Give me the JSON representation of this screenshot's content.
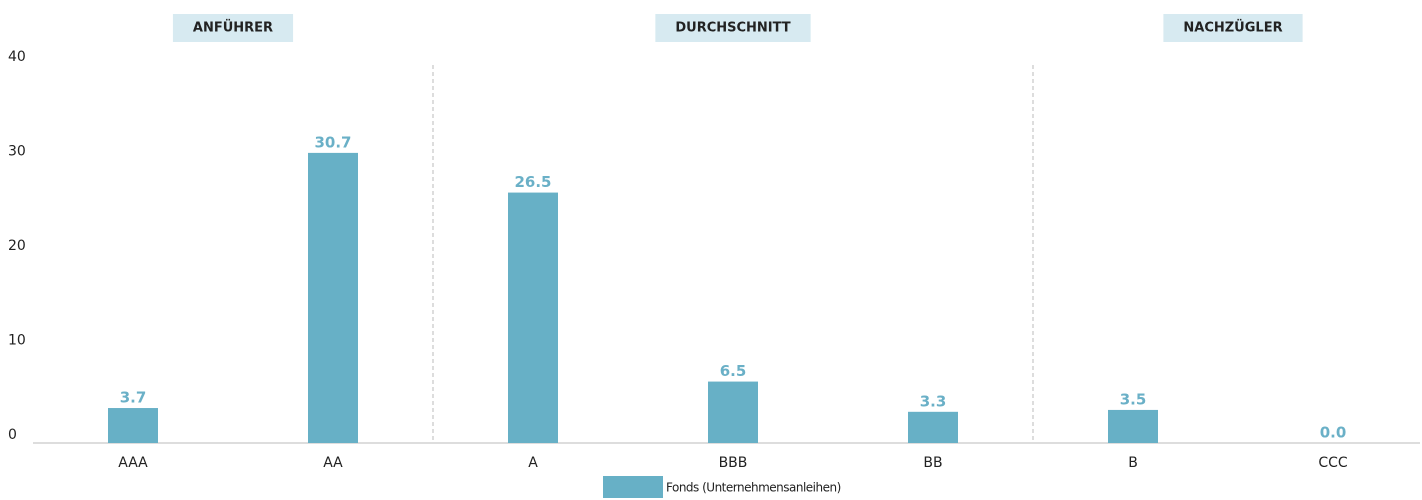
{
  "chart_data": {
    "type": "bar",
    "categories": [
      "AAA",
      "AA",
      "A",
      "BBB",
      "BB",
      "B",
      "CCC"
    ],
    "series": [
      {
        "name": "Fonds (Unternehmensanleihen)",
        "color": "#67b0c6",
        "values": [
          3.7,
          30.7,
          26.5,
          6.5,
          3.3,
          3.5,
          0.0
        ],
        "value_labels": [
          "3.7",
          "30.7",
          "26.5",
          "6.5",
          "3.3",
          "3.5",
          "0.0"
        ]
      }
    ],
    "groups": [
      {
        "label": "ANFÜHRER",
        "categories": [
          "AAA",
          "AA"
        ]
      },
      {
        "label": "DURCHSCHNITT",
        "categories": [
          "A",
          "BBB",
          "BB"
        ]
      },
      {
        "label": "NACHZÜGLER",
        "categories": [
          "B",
          "CCC"
        ]
      }
    ],
    "ylim": [
      0,
      40
    ],
    "yticks": [
      0,
      10,
      20,
      30,
      40
    ],
    "grid": false
  }
}
